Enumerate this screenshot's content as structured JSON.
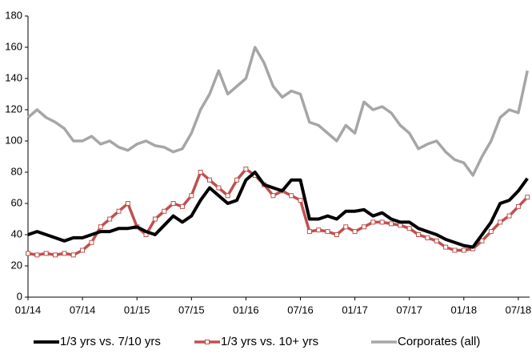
{
  "chart_data": {
    "type": "line",
    "categories": [
      "01/14",
      null,
      null,
      null,
      null,
      null,
      "07/14",
      null,
      null,
      null,
      null,
      null,
      "01/15",
      null,
      null,
      null,
      null,
      null,
      "07/15",
      null,
      null,
      null,
      null,
      null,
      "01/16",
      null,
      null,
      null,
      null,
      null,
      "07/16",
      null,
      null,
      null,
      null,
      null,
      "01/17",
      null,
      null,
      null,
      null,
      null,
      "07/17",
      null,
      null,
      null,
      null,
      null,
      "01/18",
      null,
      null,
      null,
      null,
      null,
      "07/18",
      null
    ],
    "series": [
      {
        "name": "1/3 yrs vs. 7/10 yrs",
        "color": "#000000",
        "marker": false,
        "values": [
          40,
          42,
          40,
          38,
          36,
          38,
          38,
          40,
          42,
          42,
          44,
          44,
          45,
          42,
          40,
          46,
          52,
          48,
          52,
          62,
          70,
          65,
          60,
          62,
          75,
          80,
          72,
          70,
          68,
          75,
          75,
          50,
          50,
          52,
          50,
          55,
          55,
          56,
          52,
          54,
          50,
          48,
          48,
          44,
          42,
          40,
          37,
          35,
          33,
          32,
          40,
          48,
          60,
          62,
          68,
          76
        ]
      },
      {
        "name": "1/3 yrs vs. 10+ yrs",
        "color": "#c0504d",
        "marker": true,
        "values": [
          28,
          27,
          28,
          27,
          28,
          27,
          30,
          35,
          45,
          50,
          55,
          60,
          45,
          40,
          50,
          55,
          60,
          58,
          65,
          80,
          75,
          70,
          65,
          75,
          82,
          78,
          72,
          65,
          68,
          65,
          62,
          42,
          43,
          42,
          40,
          45,
          42,
          45,
          48,
          48,
          47,
          46,
          44,
          40,
          38,
          36,
          32,
          30,
          30,
          31,
          36,
          42,
          48,
          52,
          58,
          64
        ]
      },
      {
        "name": "Corporates (all)",
        "color": "#a6a6a6",
        "marker": false,
        "values": [
          115,
          120,
          115,
          112,
          108,
          100,
          100,
          103,
          98,
          100,
          96,
          94,
          98,
          100,
          97,
          96,
          93,
          95,
          105,
          120,
          130,
          145,
          130,
          135,
          140,
          160,
          150,
          135,
          128,
          132,
          130,
          112,
          110,
          105,
          100,
          110,
          105,
          125,
          120,
          122,
          118,
          110,
          105,
          95,
          98,
          100,
          93,
          88,
          86,
          78,
          90,
          100,
          115,
          120,
          118,
          145
        ]
      }
    ],
    "ylim": [
      0,
      180
    ],
    "yticks": [
      0,
      20,
      40,
      60,
      80,
      100,
      120,
      140,
      160,
      180
    ],
    "legend": "bottom"
  }
}
